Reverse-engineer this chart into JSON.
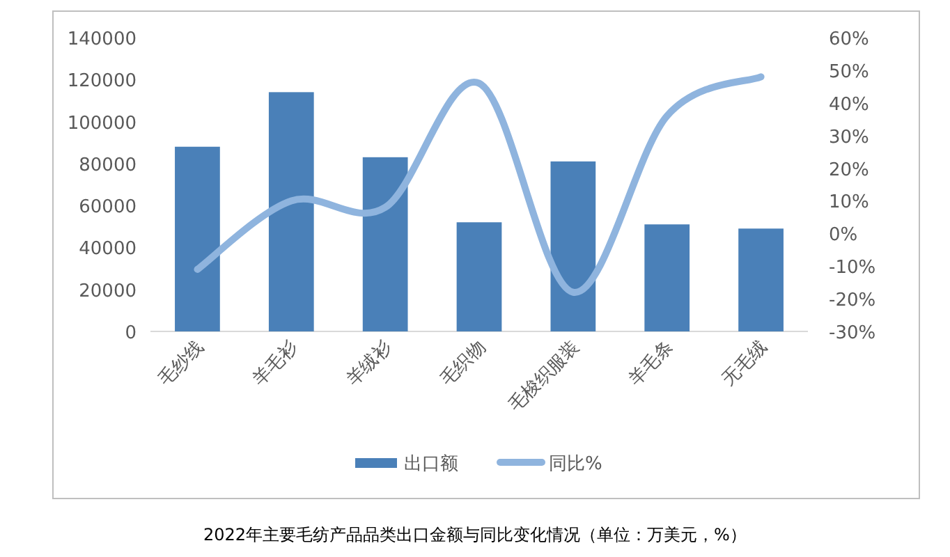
{
  "chart_data": {
    "type": "bar",
    "title": "2022年主要毛纺产品品类出口金额与同比变化情况（单位：万美元，%）",
    "categories": [
      "毛纱线",
      "羊毛衫",
      "羊绒衫",
      "毛织物",
      "毛梭织服装",
      "羊毛条",
      "无毛绒"
    ],
    "series": [
      {
        "name": "出口额",
        "color": "#4a80b8",
        "values": [
          88000,
          114000,
          83000,
          52000,
          81000,
          51000,
          49000
        ]
      },
      {
        "name": "同比%",
        "type": "line",
        "axis": "y2",
        "color": "#8fb4de",
        "values": [
          -11,
          10,
          8,
          46,
          -18,
          36,
          48
        ]
      }
    ],
    "ylim": [
      0,
      140000
    ],
    "yticks": [
      0,
      20000,
      40000,
      60000,
      80000,
      100000,
      120000,
      140000
    ],
    "y2lim": [
      -30,
      60
    ],
    "y2ticks": [
      {
        "value": -30,
        "label": "-30%"
      },
      {
        "value": -20,
        "label": "-20%"
      },
      {
        "value": -10,
        "label": "-10%"
      },
      {
        "value": 0,
        "label": "0%"
      },
      {
        "value": 10,
        "label": "10%"
      },
      {
        "value": 20,
        "label": "20%"
      },
      {
        "value": 30,
        "label": "30%"
      },
      {
        "value": 40,
        "label": "40%"
      },
      {
        "value": 50,
        "label": "50%"
      },
      {
        "value": 60,
        "label": "60%"
      }
    ],
    "grid": false,
    "legend": "bottom"
  }
}
